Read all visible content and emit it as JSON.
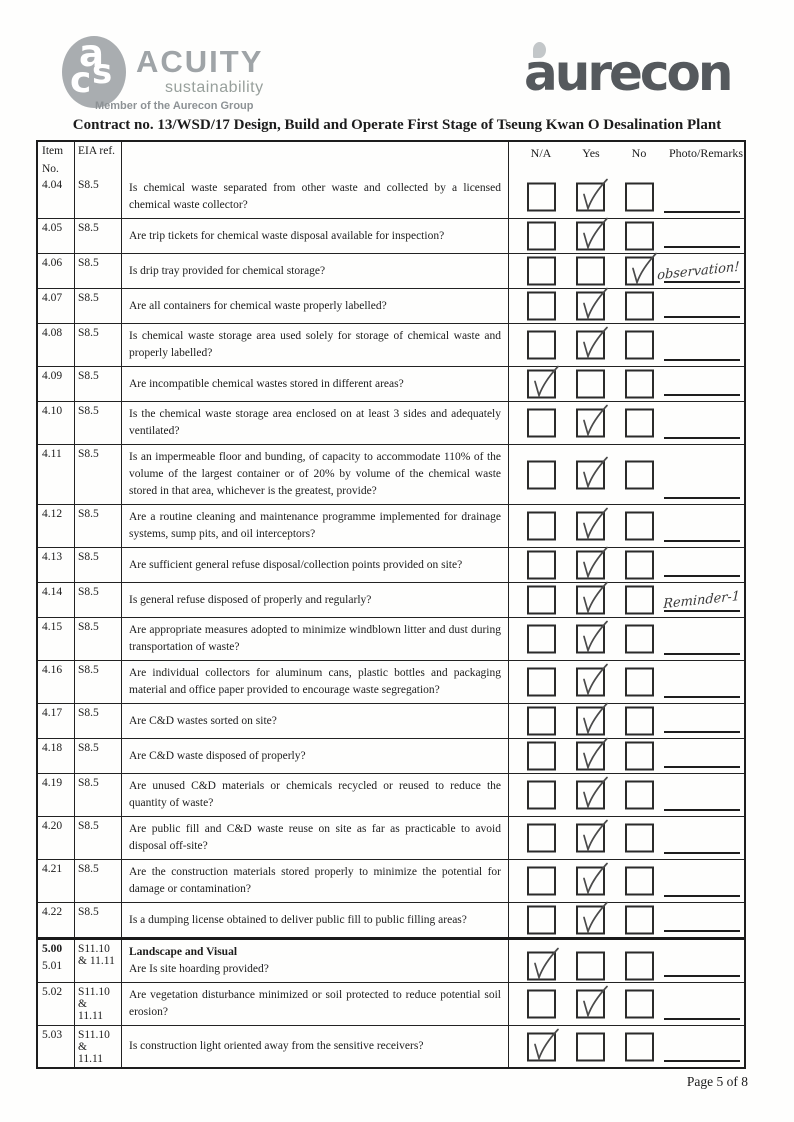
{
  "branding": {
    "acuity": {
      "monogram": "asc",
      "name": "ACUITY",
      "subtitle": "sustainability",
      "member": "Member of the Aurecon Group"
    },
    "aurecon": {
      "wordmark": "aurecon"
    }
  },
  "title": "Contract no.  13/WSD/17 Design, Build and Operate First Stage of Tseung Kwan O Desalination Plant",
  "table": {
    "columns": {
      "item_line1": "Item",
      "item_line2": "No.",
      "eia": "EIA ref.",
      "na": "N/A",
      "yes": "Yes",
      "no": "No",
      "remarks": "Photo/Remarks"
    },
    "rows": [
      {
        "item": "4.04",
        "eia": "S8.5",
        "question": "Is chemical waste separated from other waste and collected by a licensed chemical waste collector?",
        "checked": "yes",
        "remark": ""
      },
      {
        "item": "4.05",
        "eia": "S8.5",
        "question": "Are trip tickets for chemical waste disposal available for inspection?",
        "checked": "yes",
        "remark": ""
      },
      {
        "item": "4.06",
        "eia": "S8.5",
        "question": "Is drip tray provided for chemical storage?",
        "checked": "no",
        "remark": "observation!"
      },
      {
        "item": "4.07",
        "eia": "S8.5",
        "question": "Are all containers for chemical waste properly labelled?",
        "checked": "yes",
        "remark": ""
      },
      {
        "item": "4.08",
        "eia": "S8.5",
        "question": "Is chemical waste storage area used solely for storage of chemical waste and properly labelled?",
        "checked": "yes",
        "remark": ""
      },
      {
        "item": "4.09",
        "eia": "S8.5",
        "question": "Are incompatible chemical wastes stored in different areas?",
        "checked": "na",
        "remark": ""
      },
      {
        "item": "4.10",
        "eia": "S8.5",
        "question": "Is the chemical waste storage area enclosed on at least 3 sides and adequately ventilated?",
        "checked": "yes",
        "remark": ""
      },
      {
        "item": "4.11",
        "eia": "S8.5",
        "question": "Is an impermeable floor and bunding, of capacity to accommodate 110% of the volume of the largest container or of 20% by volume of the chemical waste stored in that area, whichever is the greatest, provide?",
        "checked": "yes",
        "remark": ""
      },
      {
        "item": "4.12",
        "eia": "S8.5",
        "question": "Are a routine cleaning and maintenance programme implemented for drainage systems, sump pits, and oil interceptors?",
        "checked": "yes",
        "remark": ""
      },
      {
        "item": "4.13",
        "eia": "S8.5",
        "question": "Are sufficient general refuse disposal/collection points provided on site?",
        "checked": "yes",
        "remark": ""
      },
      {
        "item": "4.14",
        "eia": "S8.5",
        "question": "Is general refuse disposed of properly and regularly?",
        "checked": "yes",
        "remark": "Reminder-1"
      },
      {
        "item": "4.15",
        "eia": "S8.5",
        "question": "Are appropriate measures adopted to minimize windblown litter and dust during transportation of waste?",
        "checked": "yes",
        "remark": ""
      },
      {
        "item": "4.16",
        "eia": "S8.5",
        "question": "Are individual collectors for aluminum cans, plastic bottles and packaging material and office paper provided to encourage waste segregation?",
        "checked": "yes",
        "remark": ""
      },
      {
        "item": "4.17",
        "eia": "S8.5",
        "question": "Are C&D wastes sorted on site?",
        "checked": "yes",
        "remark": ""
      },
      {
        "item": "4.18",
        "eia": "S8.5",
        "question": "Are C&D waste disposed of properly?",
        "checked": "yes",
        "remark": ""
      },
      {
        "item": "4.19",
        "eia": "S8.5",
        "question": "Are unused C&D materials or chemicals recycled or reused to reduce the quantity of waste?",
        "checked": "yes",
        "remark": ""
      },
      {
        "item": "4.20",
        "eia": "S8.5",
        "question": "Are public fill and C&D waste reuse on site as far as practicable to avoid disposal off-site?",
        "checked": "yes",
        "remark": ""
      },
      {
        "item": "4.21",
        "eia": "S8.5",
        "question": "Are the construction materials stored properly to minimize the potential for damage or contamination?",
        "checked": "yes",
        "remark": ""
      },
      {
        "item": "4.22",
        "eia": "S8.5",
        "question": "Is a dumping license obtained to deliver public fill to public filling areas?",
        "checked": "yes",
        "remark": ""
      },
      {
        "item": "5.00",
        "item2": "5.01",
        "eia": "S11.10",
        "eia2": "& 11.11",
        "section": "Landscape and Visual",
        "question": "Are Is site hoarding provided?",
        "checked": "na",
        "remark": ""
      },
      {
        "item": "5.02",
        "eia": "S11.10 &",
        "eia2": "11.11",
        "question": "Are vegetation disturbance minimized or soil protected to reduce potential soil erosion?",
        "checked": "yes",
        "remark": ""
      },
      {
        "item": "5.03",
        "eia": "S11.10 &",
        "eia2": "11.11",
        "question": "Is construction light oriented away from the sensitive receivers?",
        "checked": "na",
        "remark": ""
      }
    ]
  },
  "footer": {
    "page_label": "Page 5 of 8"
  },
  "colors": {
    "ink": "#1c1c1c",
    "logo_gray": "#9fa4a7",
    "aurecon_dark": "#55595d"
  }
}
